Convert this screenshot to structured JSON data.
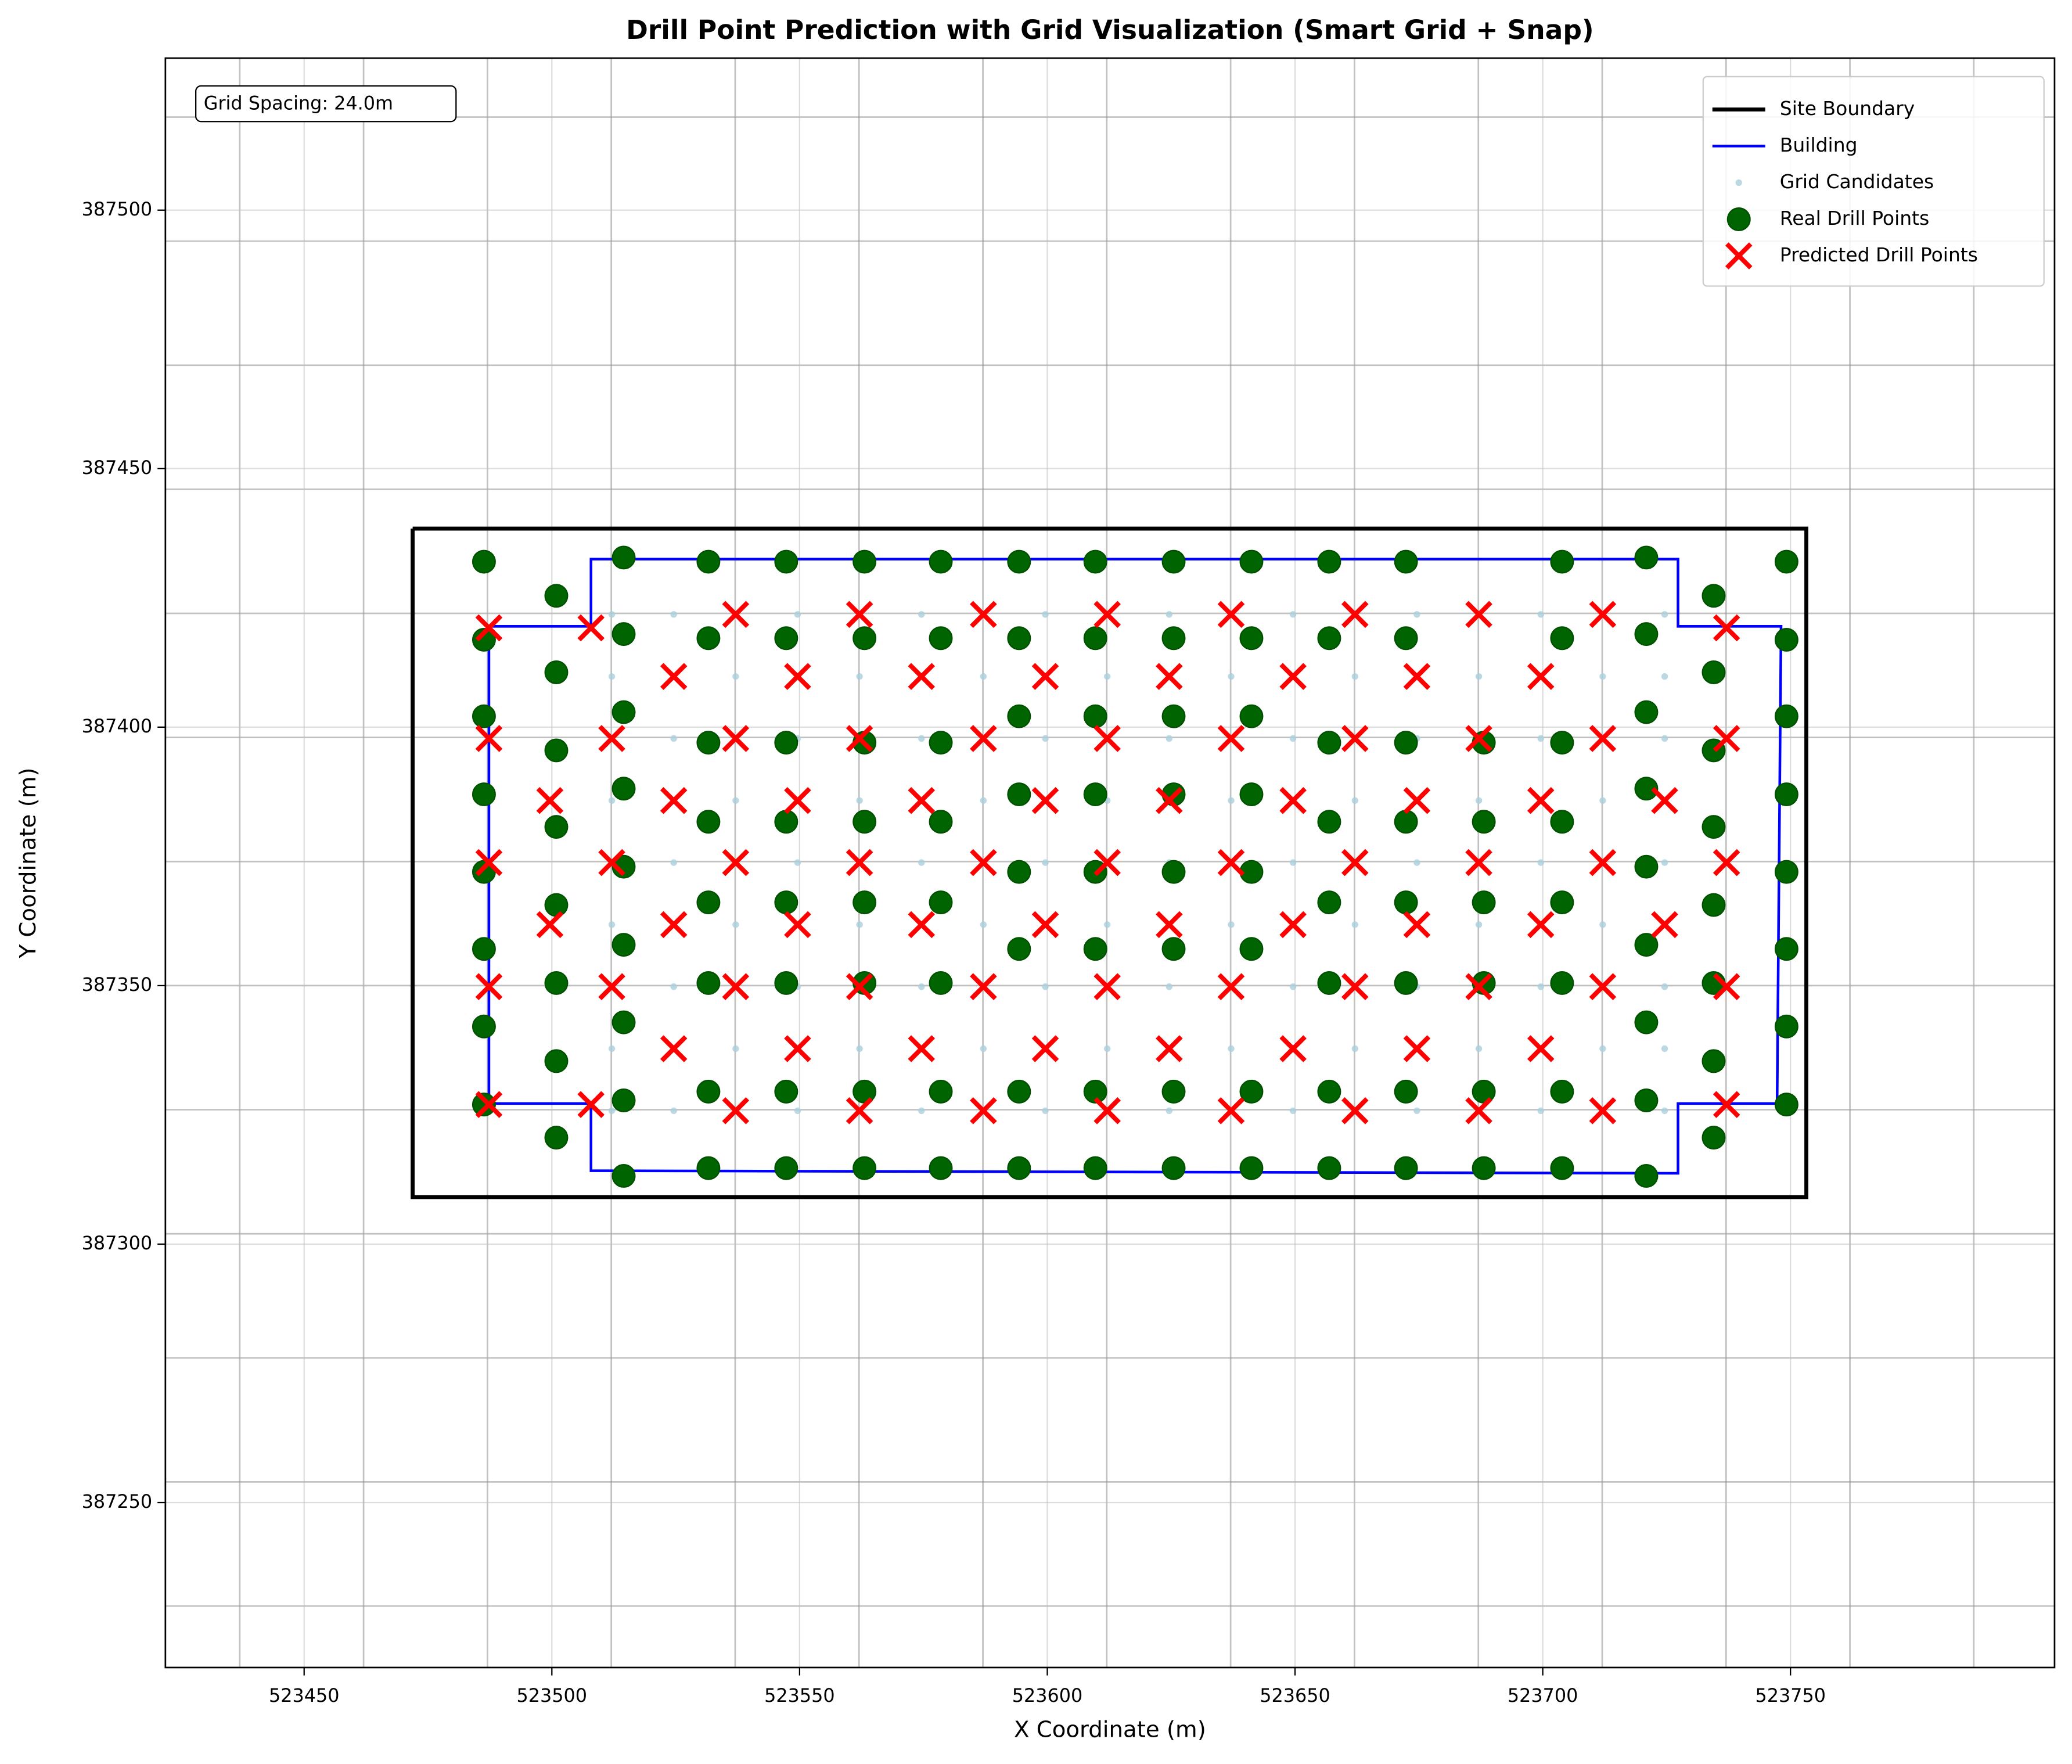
{
  "chart_data": {
    "type": "scatter",
    "title": "Drill Point Prediction with Grid Visualization (Smart Grid + Snap)",
    "x_label": "X Coordinate (m)",
    "y_label": "Y Coordinate (m)",
    "annotation": "Grid Spacing: 24.0m",
    "xlim": [
      523422,
      523803.3
    ],
    "ylim": [
      387218.1,
      387529.4
    ],
    "xticks": [
      523450,
      523500,
      523550,
      523600,
      523650,
      523700,
      523750
    ],
    "yticks": [
      387250,
      387300,
      387350,
      387400,
      387450,
      387500
    ],
    "grid": true,
    "grid_x": [
      523437,
      523462,
      523487,
      523512,
      523537,
      523562,
      523587,
      523612,
      523637,
      523662,
      523687,
      523712,
      523737,
      523762,
      523787
    ],
    "grid_y": [
      387518,
      387494,
      387470,
      387446,
      387422,
      387398,
      387374,
      387350,
      387326,
      387302,
      387278,
      387254,
      387230
    ],
    "legend": "upper right",
    "series": [
      {
        "name": "Site Boundary",
        "color": "#000000",
        "linewidth": 3,
        "x": [
          523471.9,
          523753.2,
          523753.2,
          523471.9,
          523471.9
        ],
        "y": [
          387438.4,
          387438.4,
          387309.1,
          387309.1,
          387438.4
        ]
      },
      {
        "name": "Building",
        "color": "#0000ff",
        "linewidth": 2,
        "x": [
          523487.3,
          523507.9,
          523507.9,
          523727.3,
          523727.3,
          523748.1,
          523747.3,
          523727.3,
          523727.3,
          523507.9,
          523507.9,
          523487.3,
          523487.3
        ],
        "y": [
          387419.5,
          387419.5,
          387432.5,
          387432.5,
          387419.5,
          387419.5,
          387327.2,
          387327.2,
          387313.7,
          387314.2,
          387327.2,
          387327.2,
          387419.5
        ]
      },
      {
        "name": "Grid Candidates",
        "color": "#a9cfdc",
        "marker": ".",
        "x": [
          523512.1,
          523524.6,
          523537.1,
          523549.6,
          523562.1,
          523574.6,
          523587.1,
          523599.6,
          523612.1,
          523624.6,
          523637.1,
          523649.6,
          523662.1,
          523674.6,
          523687.1,
          523699.6,
          523712.1,
          523724.6,
          523512.1,
          523524.6,
          523537.1,
          523549.6,
          523562.1,
          523574.6,
          523587.1,
          523599.6,
          523612.1,
          523624.6,
          523637.1,
          523649.6,
          523662.1,
          523674.6,
          523687.1,
          523699.6,
          523712.1,
          523724.6,
          523512.1,
          523524.6,
          523537.1,
          523549.6,
          523562.1,
          523574.6,
          523587.1,
          523599.6,
          523612.1,
          523624.6,
          523637.1,
          523649.6,
          523662.1,
          523674.6,
          523687.1,
          523699.6,
          523712.1,
          523724.6,
          523512.1,
          523524.6,
          523537.1,
          523549.6,
          523562.1,
          523574.6,
          523587.1,
          523599.6,
          523612.1,
          523624.6,
          523637.1,
          523649.6,
          523662.1,
          523674.6,
          523687.1,
          523699.6,
          523712.1,
          523724.6,
          523512.1,
          523524.6,
          523537.1,
          523549.6,
          523562.1,
          523574.6,
          523587.1,
          523599.6,
          523612.1,
          523624.6,
          523637.1,
          523649.6,
          523662.1,
          523674.6,
          523687.1,
          523699.6,
          523712.1,
          523724.6,
          523512.1,
          523524.6,
          523537.1,
          523549.6,
          523562.1,
          523574.6,
          523587.1,
          523599.6,
          523612.1,
          523624.6,
          523637.1,
          523649.6,
          523662.1,
          523674.6,
          523687.1,
          523699.6,
          523712.1,
          523724.6,
          523512.1,
          523524.6,
          523537.1,
          523549.6,
          523562.1,
          523574.6,
          523587.1,
          523599.6,
          523612.1,
          523624.6,
          523637.1,
          523649.6,
          523662.1,
          523674.6,
          523687.1,
          523699.6,
          523712.1,
          523724.6,
          523512.1,
          523524.6,
          523537.1,
          523549.6,
          523562.1,
          523574.6,
          523587.1,
          523599.6,
          523612.1,
          523624.6,
          523637.1,
          523649.6,
          523662.1,
          523674.6,
          523687.1,
          523699.6,
          523712.1,
          523724.6,
          523512.1,
          523524.6,
          523537.1,
          523549.6,
          523562.1,
          523574.6,
          523587.1,
          523599.6,
          523612.1,
          523624.6,
          523637.1,
          523649.6,
          523662.1,
          523674.6,
          523687.1,
          523699.6,
          523712.1,
          523724.6
        ],
        "y": [
          387421.8,
          387421.8,
          387421.8,
          387421.8,
          387421.8,
          387421.8,
          387421.8,
          387421.8,
          387421.8,
          387421.8,
          387421.8,
          387421.8,
          387421.8,
          387421.8,
          387421.8,
          387421.8,
          387421.8,
          387421.8,
          387409.8,
          387409.8,
          387409.8,
          387409.8,
          387409.8,
          387409.8,
          387409.8,
          387409.8,
          387409.8,
          387409.8,
          387409.8,
          387409.8,
          387409.8,
          387409.8,
          387409.8,
          387409.8,
          387409.8,
          387409.8,
          387397.8,
          387397.8,
          387397.8,
          387397.8,
          387397.8,
          387397.8,
          387397.8,
          387397.8,
          387397.8,
          387397.8,
          387397.8,
          387397.8,
          387397.8,
          387397.8,
          387397.8,
          387397.8,
          387397.8,
          387397.8,
          387385.8,
          387385.8,
          387385.8,
          387385.8,
          387385.8,
          387385.8,
          387385.8,
          387385.8,
          387385.8,
          387385.8,
          387385.8,
          387385.8,
          387385.8,
          387385.8,
          387385.8,
          387385.8,
          387385.8,
          387385.8,
          387373.8,
          387373.8,
          387373.8,
          387373.8,
          387373.8,
          387373.8,
          387373.8,
          387373.8,
          387373.8,
          387373.8,
          387373.8,
          387373.8,
          387373.8,
          387373.8,
          387373.8,
          387373.8,
          387373.8,
          387373.8,
          387361.8,
          387361.8,
          387361.8,
          387361.8,
          387361.8,
          387361.8,
          387361.8,
          387361.8,
          387361.8,
          387361.8,
          387361.8,
          387361.8,
          387361.8,
          387361.8,
          387361.8,
          387361.8,
          387361.8,
          387361.8,
          387349.8,
          387349.8,
          387349.8,
          387349.8,
          387349.8,
          387349.8,
          387349.8,
          387349.8,
          387349.8,
          387349.8,
          387349.8,
          387349.8,
          387349.8,
          387349.8,
          387349.8,
          387349.8,
          387349.8,
          387349.8,
          387337.8,
          387337.8,
          387337.8,
          387337.8,
          387337.8,
          387337.8,
          387337.8,
          387337.8,
          387337.8,
          387337.8,
          387337.8,
          387337.8,
          387337.8,
          387337.8,
          387337.8,
          387337.8,
          387337.8,
          387337.8,
          387325.8,
          387325.8,
          387325.8,
          387325.8,
          387325.8,
          387325.8,
          387325.8,
          387325.8,
          387325.8,
          387325.8,
          387325.8,
          387325.8,
          387325.8,
          387325.8,
          387325.8,
          387325.8,
          387325.8,
          387325.8
        ]
      },
      {
        "name": "Real Drill Points",
        "color": "#006400",
        "marker": "o",
        "x": [
          523486.3,
          523486.3,
          523486.3,
          523486.3,
          523486.3,
          523486.3,
          523486.3,
          523486.3,
          523500.9,
          523500.9,
          523500.9,
          523500.9,
          523500.9,
          523500.9,
          523500.9,
          523500.9,
          523514.5,
          523514.5,
          523514.5,
          523514.5,
          523514.5,
          523514.5,
          523514.5,
          523514.5,
          523514.5,
          523531.6,
          523531.6,
          523531.6,
          523531.6,
          523531.6,
          523531.6,
          523531.6,
          523531.6,
          523547.3,
          523547.3,
          523547.3,
          523547.3,
          523547.3,
          523547.3,
          523547.3,
          523547.3,
          523563.1,
          523563.1,
          523563.1,
          523563.1,
          523563.1,
          523563.1,
          523563.1,
          523563.1,
          523578.5,
          523578.5,
          523578.5,
          523578.5,
          523578.5,
          523578.5,
          523578.5,
          523578.5,
          523594.3,
          523594.3,
          523594.3,
          523594.3,
          523594.3,
          523594.3,
          523594.3,
          523594.3,
          523609.7,
          523609.7,
          523609.7,
          523609.7,
          523609.7,
          523609.7,
          523609.7,
          523609.7,
          523625.5,
          523625.5,
          523625.5,
          523625.5,
          523625.5,
          523625.5,
          523625.5,
          523625.5,
          523641.2,
          523641.2,
          523641.2,
          523641.2,
          523641.2,
          523641.2,
          523641.2,
          523641.2,
          523656.9,
          523656.9,
          523656.9,
          523656.9,
          523656.9,
          523656.9,
          523656.9,
          523656.9,
          523672.4,
          523672.4,
          523672.4,
          523672.4,
          523672.4,
          523672.4,
          523672.4,
          523672.4,
          523688.1,
          523688.1,
          523688.1,
          523688.1,
          523688.1,
          523688.1,
          523703.9,
          523703.9,
          523703.9,
          523703.9,
          523703.9,
          523703.9,
          523703.9,
          523703.9,
          523720.9,
          523720.9,
          523720.9,
          523720.9,
          523720.9,
          523720.9,
          523720.9,
          523720.9,
          523720.9,
          523734.5,
          523734.5,
          523734.5,
          523734.5,
          523734.5,
          523734.5,
          523734.5,
          523734.5,
          523749.2,
          523749.2,
          523749.2,
          523749.2,
          523749.2,
          523749.2,
          523749.2,
          523749.2
        ],
        "y": [
          387432.0,
          387416.9,
          387402.1,
          387387.0,
          387372.0,
          387357.1,
          387342.1,
          387327.0,
          387425.4,
          387410.6,
          387395.5,
          387380.7,
          387365.6,
          387350.5,
          387335.4,
          387320.6,
          387432.8,
          387418.0,
          387402.9,
          387388.1,
          387373.0,
          387357.9,
          387342.9,
          387327.8,
          387313.2,
          387432.0,
          387417.2,
          387397.0,
          387381.7,
          387366.1,
          387350.5,
          387329.5,
          387314.7,
          387432.0,
          387417.2,
          387397.0,
          387381.7,
          387366.1,
          387350.5,
          387329.5,
          387314.7,
          387432.0,
          387417.2,
          387397.0,
          387381.7,
          387366.1,
          387350.5,
          387329.5,
          387314.7,
          387432.0,
          387417.2,
          387397.0,
          387381.7,
          387366.1,
          387350.5,
          387329.5,
          387314.7,
          387432.0,
          387417.2,
          387402.1,
          387387.0,
          387372.0,
          387357.1,
          387329.5,
          387314.7,
          387432.0,
          387417.2,
          387402.1,
          387387.0,
          387372.0,
          387357.1,
          387329.5,
          387314.7,
          387432.0,
          387417.2,
          387402.1,
          387387.0,
          387372.0,
          387357.1,
          387329.5,
          387314.7,
          387432.0,
          387417.2,
          387402.1,
          387387.0,
          387372.0,
          387357.1,
          387329.5,
          387314.7,
          387432.0,
          387417.2,
          387397.0,
          387381.7,
          387366.1,
          387350.5,
          387329.5,
          387314.7,
          387432.0,
          387417.2,
          387397.0,
          387381.7,
          387366.1,
          387350.5,
          387329.5,
          387314.7,
          387397.0,
          387381.7,
          387366.1,
          387350.5,
          387329.5,
          387314.7,
          387432.0,
          387417.2,
          387397.0,
          387381.7,
          387366.1,
          387350.5,
          387329.5,
          387314.7,
          387432.8,
          387418.0,
          387402.9,
          387388.1,
          387373.0,
          387357.9,
          387342.9,
          387327.8,
          387313.2,
          387425.4,
          387410.6,
          387395.5,
          387380.7,
          387365.6,
          387350.5,
          387335.4,
          387320.6,
          387432.0,
          387416.9,
          387402.1,
          387387.0,
          387372.0,
          387357.1,
          387342.1,
          387327.0
        ]
      },
      {
        "name": "Predicted Drill Points",
        "color": "#ff0000",
        "marker": "x",
        "x": [
          523487.3,
          523507.9,
          523537.1,
          523562.1,
          523587.1,
          523612.1,
          523637.1,
          523662.1,
          523687.1,
          523712.1,
          523737.1,
          523524.6,
          523549.6,
          523574.6,
          523599.6,
          523624.6,
          523649.6,
          523674.6,
          523699.6,
          523487.3,
          523512.1,
          523537.1,
          523562.1,
          523587.1,
          523612.1,
          523637.1,
          523662.1,
          523687.1,
          523712.1,
          523737.1,
          523499.6,
          523524.6,
          523549.6,
          523574.6,
          523599.6,
          523624.6,
          523649.6,
          523674.6,
          523699.6,
          523724.6,
          523487.3,
          523512.1,
          523537.1,
          523562.1,
          523587.1,
          523612.1,
          523637.1,
          523662.1,
          523687.1,
          523712.1,
          523737.1,
          523499.6,
          523524.6,
          523549.6,
          523574.6,
          523599.6,
          523624.6,
          523649.6,
          523674.6,
          523699.6,
          523724.6,
          523487.3,
          523512.1,
          523537.1,
          523562.1,
          523587.1,
          523612.1,
          523637.1,
          523662.1,
          523687.1,
          523712.1,
          523737.1,
          523524.6,
          523549.6,
          523574.6,
          523599.6,
          523624.6,
          523649.6,
          523674.6,
          523699.6,
          523487.3,
          523507.9,
          523537.1,
          523562.1,
          523587.1,
          523612.1,
          523637.1,
          523662.1,
          523687.1,
          523712.1,
          523737.1
        ],
        "y": [
          387419.2,
          387419.2,
          387421.8,
          387421.8,
          387421.8,
          387421.8,
          387421.8,
          387421.8,
          387421.8,
          387421.8,
          387419.2,
          387409.8,
          387409.8,
          387409.8,
          387409.8,
          387409.8,
          387409.8,
          387409.8,
          387409.8,
          387397.8,
          387397.8,
          387397.8,
          387397.8,
          387397.8,
          387397.8,
          387397.8,
          387397.8,
          387397.8,
          387397.8,
          387397.8,
          387385.8,
          387385.8,
          387385.8,
          387385.8,
          387385.8,
          387385.8,
          387385.8,
          387385.8,
          387385.8,
          387385.8,
          387373.8,
          387373.8,
          387373.8,
          387373.8,
          387373.8,
          387373.8,
          387373.8,
          387373.8,
          387373.8,
          387373.8,
          387373.8,
          387361.8,
          387361.8,
          387361.8,
          387361.8,
          387361.8,
          387361.8,
          387361.8,
          387361.8,
          387361.8,
          387361.8,
          387349.8,
          387349.8,
          387349.8,
          387349.8,
          387349.8,
          387349.8,
          387349.8,
          387349.8,
          387349.8,
          387349.8,
          387349.8,
          387337.8,
          387337.8,
          387337.8,
          387337.8,
          387337.8,
          387337.8,
          387337.8,
          387337.8,
          387327.0,
          387327.0,
          387325.8,
          387325.8,
          387325.8,
          387325.8,
          387325.8,
          387325.8,
          387325.8,
          387325.8,
          387327.0
        ]
      }
    ]
  }
}
